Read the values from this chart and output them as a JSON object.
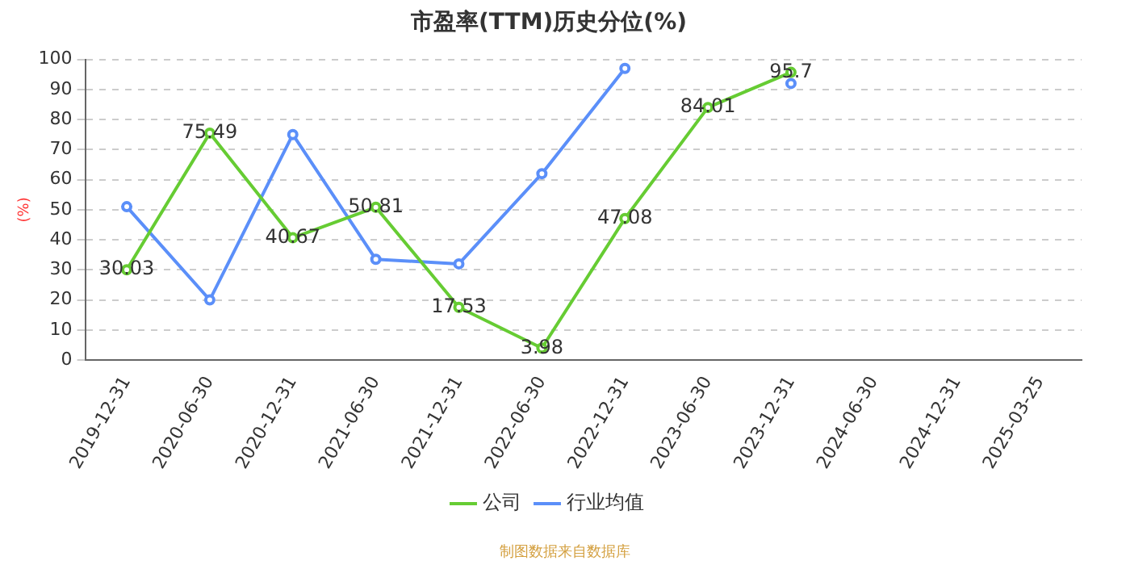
{
  "chart_data": {
    "type": "line",
    "title": "市盈率(TTM)历史分位(%)",
    "ylabel": "(%)",
    "categories": [
      "2019-12-31",
      "2020-06-30",
      "2020-12-31",
      "2021-06-30",
      "2021-12-31",
      "2022-06-30",
      "2022-12-31",
      "2023-06-30",
      "2023-12-31",
      "2024-06-30",
      "2024-12-31",
      "2025-03-25"
    ],
    "series": [
      {
        "name": "公司",
        "color": "#66cc33",
        "values": [
          30.03,
          75.49,
          40.67,
          50.81,
          17.53,
          3.98,
          47.08,
          84.01,
          95.7,
          null,
          null,
          null
        ],
        "value_labels": [
          "30.03",
          "75.49",
          "40.67",
          "50.81",
          "17.53",
          "3.98",
          "47.08",
          "84.01",
          "95.7",
          null,
          null,
          null
        ]
      },
      {
        "name": "行业均值",
        "color": "#5b8ff9",
        "values": [
          51,
          20,
          75,
          33.5,
          32,
          62,
          97,
          null,
          92,
          null,
          null,
          null
        ]
      }
    ],
    "ylim": [
      0,
      100
    ],
    "yticks": [
      0,
      10,
      20,
      30,
      40,
      50,
      60,
      70,
      80,
      90,
      100
    ],
    "grid": "y",
    "legend": "bottom",
    "marker": "circle",
    "line_style": "solid",
    "annotations": [
      "制图数据来自数据库"
    ]
  }
}
